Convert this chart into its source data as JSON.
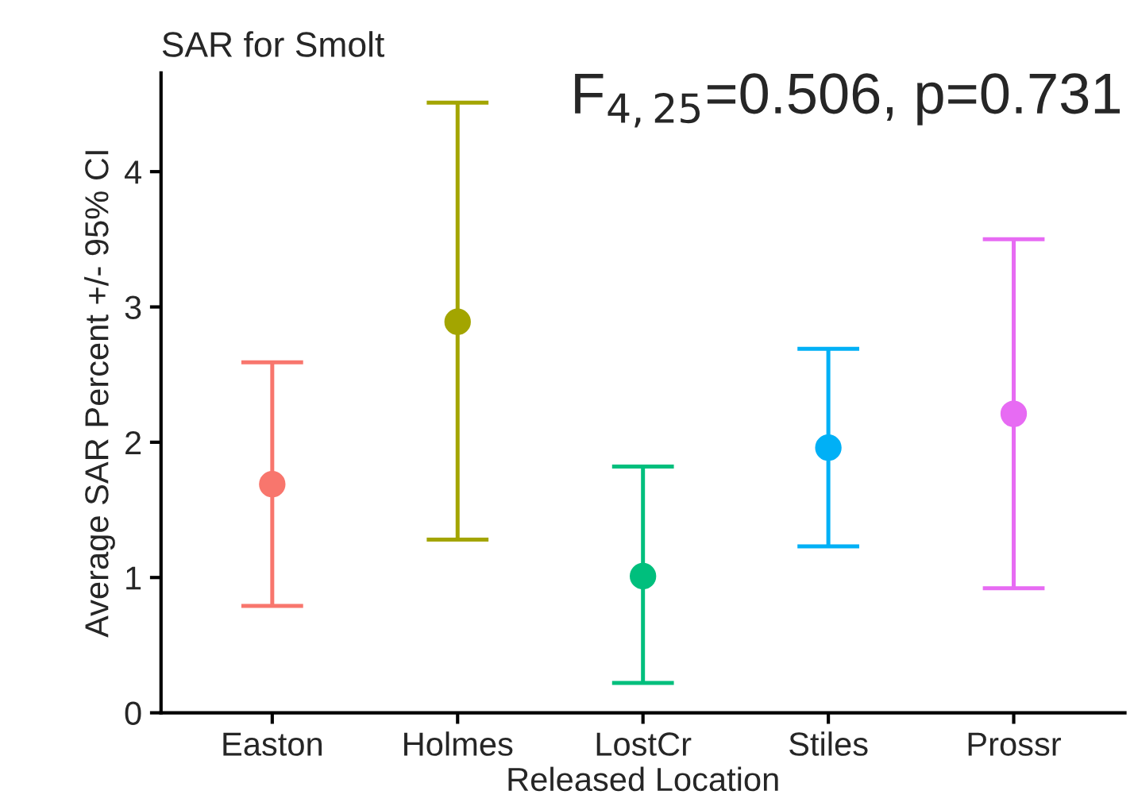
{
  "chart_data": {
    "type": "scatter",
    "title": "SAR for Smolt",
    "xlabel": "Released Location",
    "ylabel": "Average SAR Percent +/- 95% CI",
    "categories": [
      "Easton",
      "Holmes",
      "LostCr",
      "Stiles",
      "Prossr"
    ],
    "values": [
      1.69,
      2.89,
      1.01,
      1.96,
      2.21
    ],
    "errors": [
      [
        0.79,
        2.59
      ],
      [
        1.28,
        4.51
      ],
      [
        0.22,
        1.82
      ],
      [
        1.23,
        2.69
      ],
      [
        0.92,
        3.5
      ]
    ],
    "colors": [
      "#f8766d",
      "#a3a500",
      "#00bf7d",
      "#00b0f6",
      "#e76bf3"
    ],
    "ylim": [
      0,
      4.73
    ],
    "yticks": [
      0,
      1,
      2,
      3,
      4
    ],
    "grid": false,
    "marker": "circle",
    "annotations": [
      "F$_{4,25}$=0.506, p=0.731"
    ]
  }
}
